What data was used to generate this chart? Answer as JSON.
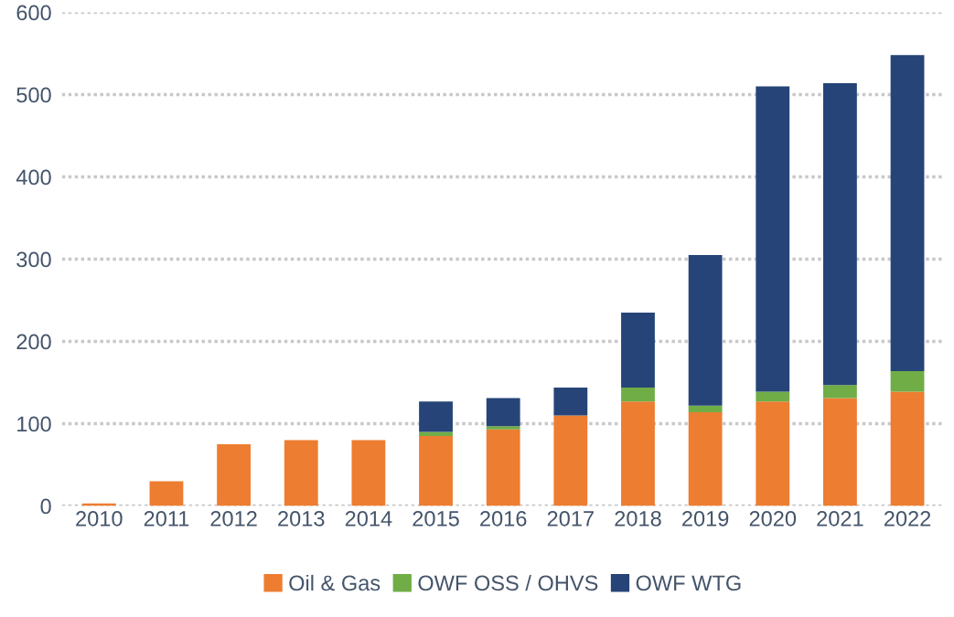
{
  "chart_data": {
    "type": "bar",
    "stacked": true,
    "categories": [
      "2010",
      "2011",
      "2012",
      "2013",
      "2014",
      "2015",
      "2016",
      "2017",
      "2018",
      "2019",
      "2020",
      "2021",
      "2022"
    ],
    "series": [
      {
        "name": "Oil & Gas",
        "color": "#ed7d31",
        "values": [
          3,
          30,
          75,
          80,
          80,
          85,
          93,
          110,
          127,
          114,
          127,
          131,
          139
        ]
      },
      {
        "name": "OWF OSS / OHVS",
        "color": "#70ad47",
        "values": [
          0,
          0,
          0,
          0,
          0,
          5,
          4,
          0,
          17,
          8,
          12,
          16,
          25
        ]
      },
      {
        "name": "OWF WTG",
        "color": "#264478",
        "values": [
          0,
          0,
          0,
          0,
          0,
          37,
          34,
          34,
          91,
          183,
          371,
          367,
          384
        ]
      }
    ],
    "ylim": [
      0,
      600
    ],
    "yticks": [
      0,
      100,
      200,
      300,
      400,
      500,
      600
    ],
    "grid": "y",
    "legend": "bottom"
  }
}
